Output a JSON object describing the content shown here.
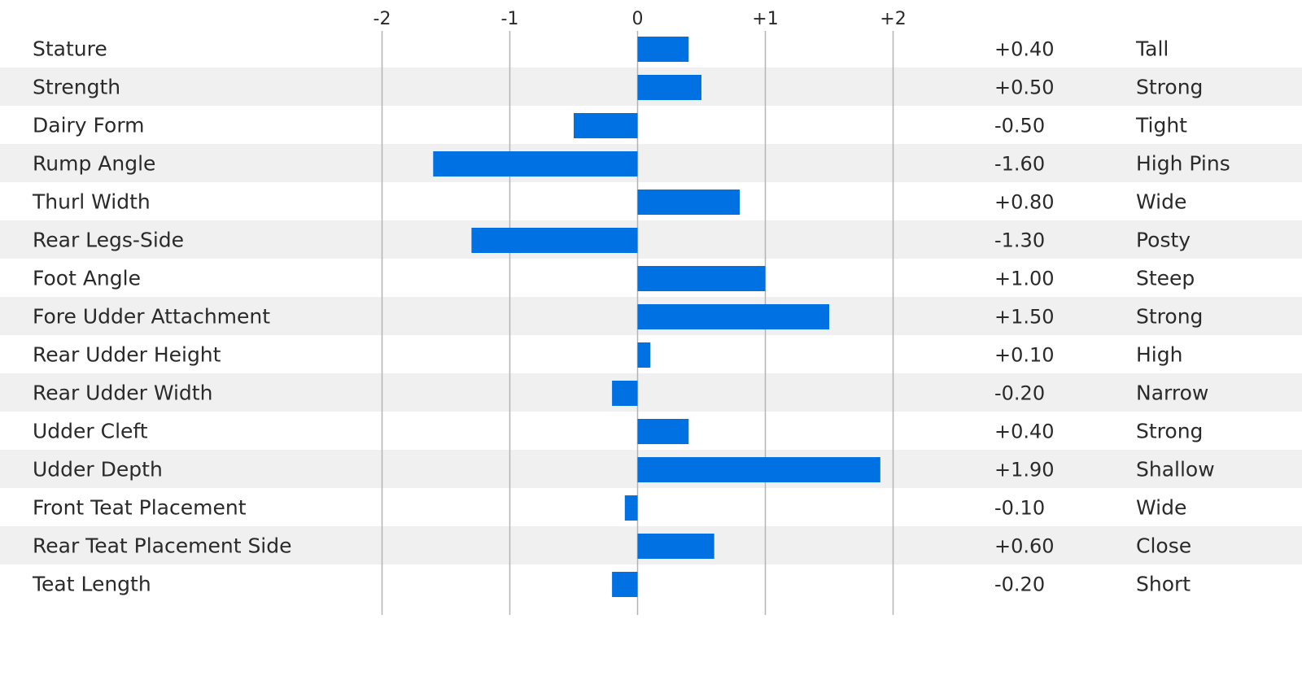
{
  "chart_data": {
    "type": "bar",
    "orientation": "horizontal",
    "categories": [
      "Stature",
      "Strength",
      "Dairy Form",
      "Rump Angle",
      "Thurl Width",
      "Rear Legs-Side",
      "Foot Angle",
      "Fore Udder Attachment",
      "Rear Udder Height",
      "Rear Udder Width",
      "Udder Cleft",
      "Udder Depth",
      "Front Teat Placement",
      "Rear Teat Placement Side",
      "Teat Length"
    ],
    "values": [
      0.4,
      0.5,
      -0.5,
      -1.6,
      0.8,
      -1.3,
      1.0,
      1.5,
      0.1,
      -0.2,
      0.4,
      1.9,
      -0.1,
      0.6,
      -0.2
    ],
    "value_labels": [
      "+0.40",
      "+0.50",
      "-0.50",
      "-1.60",
      "+0.80",
      "-1.30",
      "+1.00",
      "+1.50",
      "+0.10",
      "-0.20",
      "+0.40",
      "+1.90",
      "-0.10",
      "+0.60",
      "-0.20"
    ],
    "descriptors": [
      "Tall",
      "Strong",
      "Tight",
      "High Pins",
      "Wide",
      "Posty",
      "Steep",
      "Strong",
      "High",
      "Narrow",
      "Strong",
      "Shallow",
      "Wide",
      "Close",
      "Short"
    ],
    "xlim": [
      -2,
      2
    ],
    "ticks": [
      -2,
      -1,
      0,
      1,
      2
    ],
    "tick_labels": [
      "-2",
      "-1",
      "0",
      "+1",
      "+2"
    ],
    "title": "",
    "xlabel": "",
    "ylabel": "",
    "grid": "vertical",
    "legend": "none",
    "bar_color": "#0071e3",
    "stripe_color": "#f0f0f0",
    "gridline_color": "#b4b4b4"
  }
}
